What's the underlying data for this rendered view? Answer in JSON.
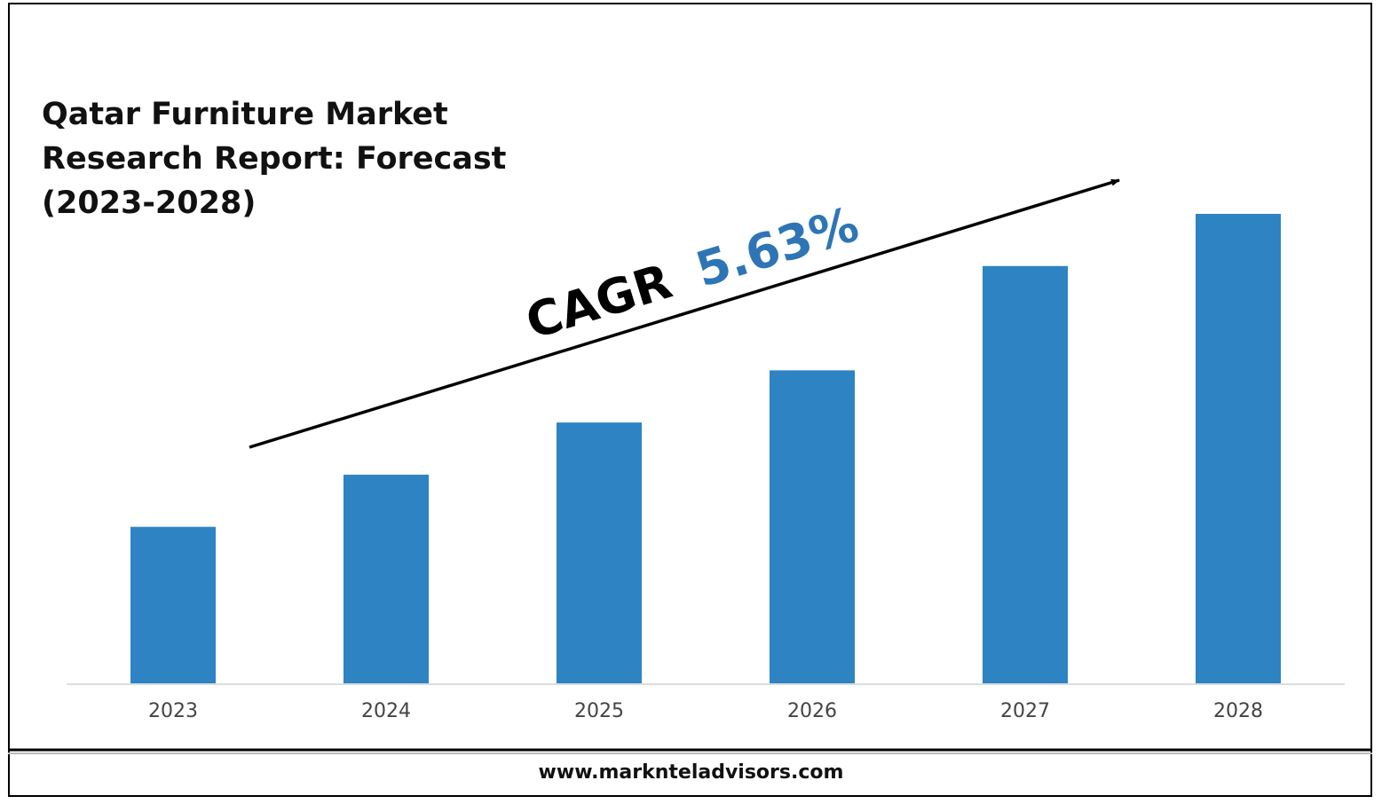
{
  "chart_data": {
    "type": "bar",
    "title_lines": [
      "Qatar Furniture Market",
      "Research Report: Forecast",
      "(2023-2028)"
    ],
    "categories": [
      "2023",
      "2024",
      "2025",
      "2026",
      "2027",
      "2028"
    ],
    "values": [
      30,
      40,
      50,
      60,
      80,
      90
    ],
    "ylim": [
      0,
      90
    ],
    "bar_color": "#2E83C3",
    "grid": false,
    "annotation": {
      "label": "CAGR",
      "value": "5.63%",
      "value_color": "#2E75B6",
      "arrow": "trend-up"
    }
  },
  "footer": {
    "url": "www.marknteladvisors.com"
  }
}
